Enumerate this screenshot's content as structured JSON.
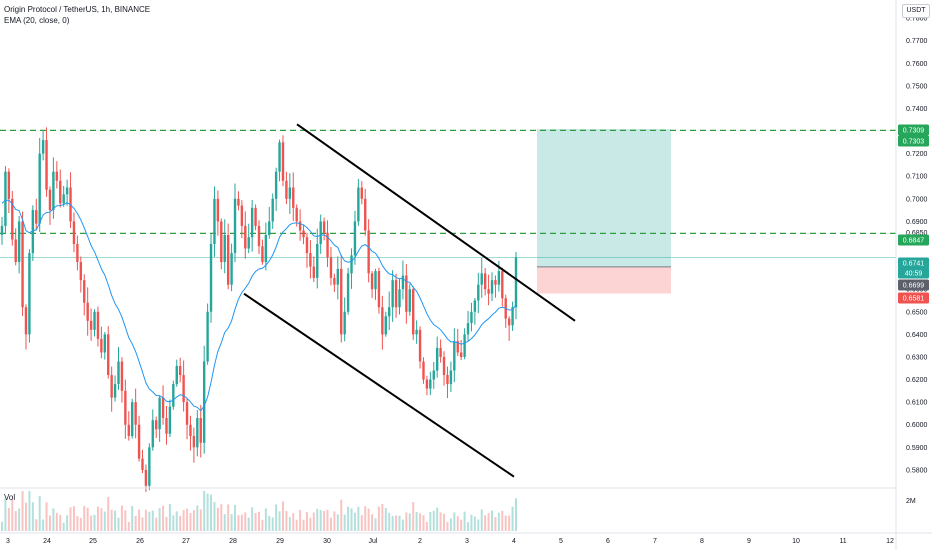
{
  "legend": {
    "symbol": "Origin Protocol / TetherUS, 1h, BINANCE",
    "indicator": "EMA (20, close, 0)",
    "volume": "Vol"
  },
  "currency": "USDT",
  "price_axis": {
    "ticks": [
      "0.7800",
      "0.7700",
      "0.7600",
      "0.7500",
      "0.7400",
      "0.7300",
      "0.7200",
      "0.7100",
      "0.7000",
      "0.6900",
      "0.6850",
      "0.6700",
      "0.6600",
      "0.6500",
      "0.6400",
      "0.6300",
      "0.6200",
      "0.6100",
      "0.6000",
      "0.5900",
      "0.5800"
    ],
    "volume_tick": "2M"
  },
  "time_axis": {
    "ticks": [
      "3",
      "24",
      "25",
      "26",
      "27",
      "28",
      "29",
      "30",
      "Jul",
      "2",
      "3",
      "4",
      "5",
      "6",
      "7",
      "8",
      "9",
      "10",
      "11",
      "12"
    ]
  },
  "badges": [
    {
      "text": "0.7309",
      "color": "#26a65b"
    },
    {
      "text": "0.7303",
      "color": "#26a65b"
    },
    {
      "text": "0.6847",
      "color": "#26a65b"
    },
    {
      "text": "0.6741",
      "color": "#26a69a"
    },
    {
      "text": "40:59",
      "color": "#26a69a"
    },
    {
      "text": "0.6699",
      "color": "#5d606b"
    },
    {
      "text": "0.6581",
      "color": "#ef5350"
    }
  ],
  "chart_data": {
    "type": "candlestick",
    "ylim": [
      0.572,
      0.788
    ],
    "levels": {
      "resistance_dashed": [
        0.7303,
        0.6847
      ],
      "current_price": 0.6741,
      "entry": 0.6699,
      "take_profit": 0.7309,
      "stop_loss": 0.6581
    },
    "channel": {
      "upper": [
        [
          "29",
          0.733
        ],
        [
          "4 +1.5",
          0.646
        ]
      ],
      "lower": [
        [
          "28 +0.25",
          0.658
        ],
        [
          "4",
          0.577
        ]
      ]
    },
    "candle_path": [
      0.688,
      0.712,
      0.7,
      0.682,
      0.672,
      0.69,
      0.652,
      0.64,
      0.676,
      0.695,
      0.689,
      0.72,
      0.726,
      0.704,
      0.695,
      0.712,
      0.708,
      0.698,
      0.702,
      0.705,
      0.69,
      0.68,
      0.672,
      0.664,
      0.654,
      0.646,
      0.642,
      0.65,
      0.638,
      0.632,
      0.64,
      0.622,
      0.612,
      0.618,
      0.628,
      0.615,
      0.6,
      0.595,
      0.61,
      0.6,
      0.585,
      0.58,
      0.573,
      0.59,
      0.602,
      0.598,
      0.612,
      0.603,
      0.596,
      0.608,
      0.618,
      0.626,
      0.622,
      0.61,
      0.6,
      0.595,
      0.59,
      0.603,
      0.592,
      0.628,
      0.65,
      0.68,
      0.7,
      0.69,
      0.672,
      0.684,
      0.662,
      0.676,
      0.7,
      0.697,
      0.688,
      0.678,
      0.683,
      0.696,
      0.688,
      0.679,
      0.672,
      0.684,
      0.69,
      0.7,
      0.712,
      0.725,
      0.708,
      0.7,
      0.705,
      0.696,
      0.69,
      0.686,
      0.683,
      0.676,
      0.67,
      0.665,
      0.68,
      0.69,
      0.685,
      0.674,
      0.665,
      0.662,
      0.669,
      0.64,
      0.65,
      0.667,
      0.675,
      0.69,
      0.705,
      0.7,
      0.686,
      0.667,
      0.66,
      0.668,
      0.652,
      0.64,
      0.648,
      0.652,
      0.664,
      0.652,
      0.66,
      0.666,
      0.65,
      0.66,
      0.64,
      0.642,
      0.628,
      0.62,
      0.616,
      0.62,
      0.624,
      0.634,
      0.63,
      0.622,
      0.618,
      0.624,
      0.637,
      0.632,
      0.63,
      0.64,
      0.645,
      0.65,
      0.655,
      0.662,
      0.667,
      0.66,
      0.658,
      0.664,
      0.662,
      0.668,
      0.656,
      0.647,
      0.644,
      0.652,
      0.674
    ]
  }
}
